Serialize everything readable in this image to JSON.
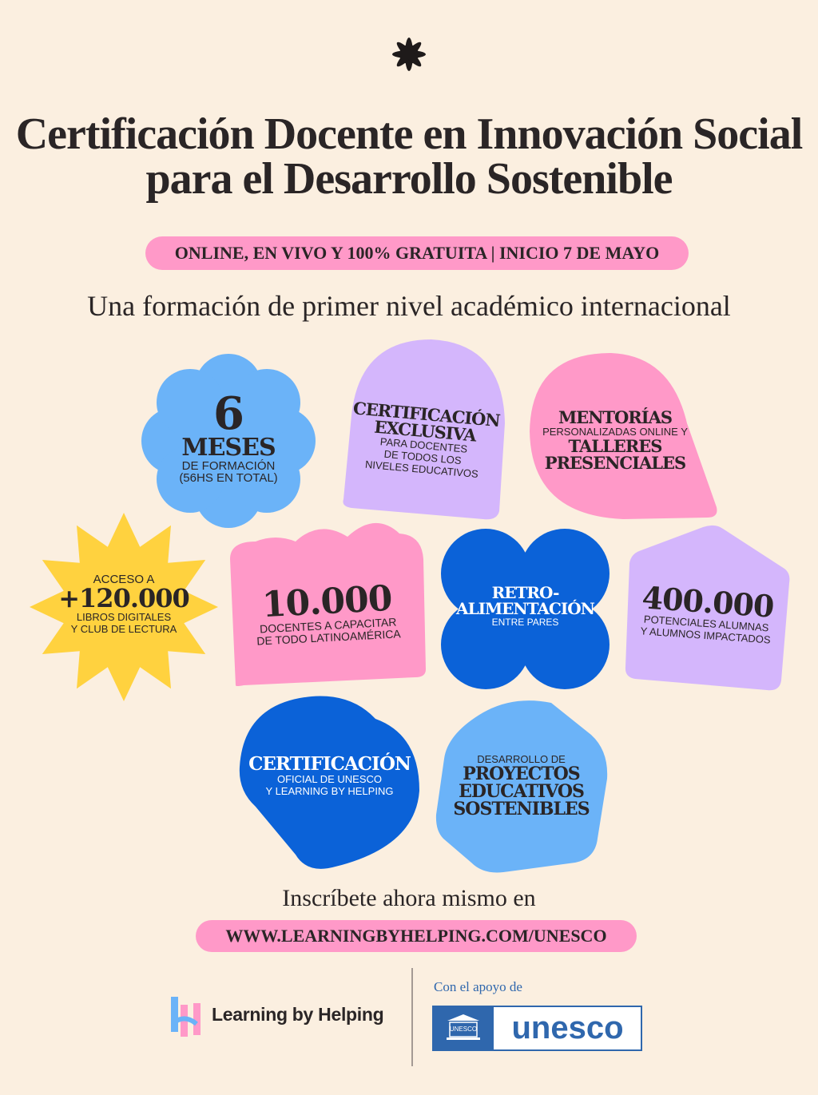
{
  "header": {
    "title_line1": "Certificación Docente en Innovación Social",
    "title_line2": "para el Desarrollo Sostenible",
    "banner": "ONLINE, EN VIVO Y 100% GRATUITA | INICIO 7 DE MAYO",
    "subtitle": "Una formación de primer nivel académico internacional"
  },
  "cards": {
    "meses": {
      "number": "6",
      "title": "MESES",
      "line1": "DE FORMACIÓN",
      "line2": "(56HS EN TOTAL)"
    },
    "certificacion_exclusiva": {
      "title1": "CERTIFICACIÓN",
      "title2": "EXCLUSIVA",
      "line1": "PARA DOCENTES",
      "line2": "DE TODOS LOS",
      "line3": "NIVELES EDUCATIVOS"
    },
    "mentorias": {
      "title": "MENTORÍAS",
      "line1": "PERSONALIZADAS ONLINE Y",
      "title2": "TALLERES",
      "title3": "PRESENCIALES"
    },
    "acceso": {
      "pre": "ACCESO A",
      "number": "+120.000",
      "line1": "LIBROS DIGITALES",
      "line2": "Y CLUB DE LECTURA"
    },
    "docentes": {
      "number": "10.000",
      "line1": "DOCENTES A CAPACITAR",
      "line2": "DE TODO LATINOAMÉRICA"
    },
    "retro": {
      "title1": "RETRO-",
      "title2": "ALIMENTACIÓN",
      "line1": "ENTRE PARES"
    },
    "impacto": {
      "number": "400.000",
      "line1": "POTENCIALES ALUMNAS",
      "line2": "Y ALUMNOS IMPACTADOS"
    },
    "certificacion_oficial": {
      "title": "CERTIFICACIÓN",
      "line1": "OFICIAL DE UNESCO",
      "line2": "Y LEARNING BY HELPING"
    },
    "proyectos": {
      "pre": "DESARROLLO DE",
      "title1": "PROYECTOS",
      "title2": "EDUCATIVOS",
      "title3": "SOSTENIBLES"
    }
  },
  "cta": {
    "text": "Inscríbete ahora mismo en",
    "url": "WWW.LEARNINGBYHELPING.COM/UNESCO"
  },
  "footer": {
    "brand": "Learning by Helping",
    "support": "Con el apoyo de",
    "unesco": "unesco",
    "unesco_seal": "UNESCO"
  },
  "colors": {
    "background": "#fbefe0",
    "pink": "#ff99c8",
    "lavender": "#d4b6fc",
    "light_blue": "#6bb3f8",
    "blue": "#0b62d8",
    "yellow": "#ffd23f",
    "unesco_blue": "#2f67ad"
  }
}
